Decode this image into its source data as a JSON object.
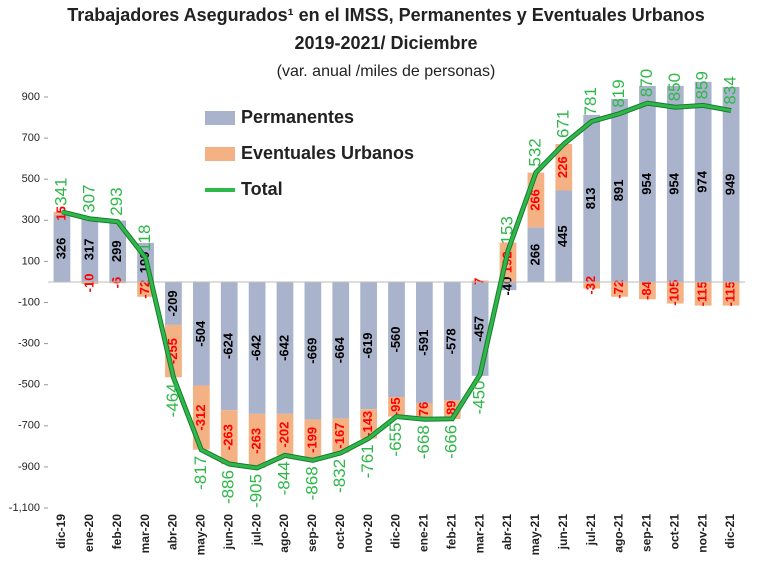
{
  "chart_data": {
    "type": "stacked_bar_line",
    "title": "Trabajadores Asegurados¹ en el IMSS, Permanentes y Eventuales Urbanos",
    "subtitle": "2019-2021/ Diciembre",
    "note": "(var. anual /miles de personas)",
    "categories": [
      "dic-19",
      "ene-20",
      "feb-20",
      "mar-20",
      "abr-20",
      "may-20",
      "jun-20",
      "jul-20",
      "ago-20",
      "sep-20",
      "oct-20",
      "nov-20",
      "dic-20",
      "ene-21",
      "feb-21",
      "mar-21",
      "abr-21",
      "may-21",
      "jun-21",
      "jul-21",
      "ago-21",
      "sep-21",
      "oct-21",
      "nov-21",
      "dic-21"
    ],
    "series": [
      {
        "name": "Permanentes",
        "color": "#a9b4cc",
        "kind": "bar",
        "label_color": "#000000",
        "values": [
          326,
          317,
          299,
          190,
          -209,
          -504,
          -624,
          -642,
          -642,
          -669,
          -664,
          -619,
          -560,
          -591,
          -578,
          -457,
          -40,
          266,
          445,
          813,
          891,
          954,
          954,
          974,
          949
        ]
      },
      {
        "name": "Eventuales Urbanos",
        "color": "#f4b183",
        "kind": "bar",
        "label_color": "#ff0000",
        "values": [
          15,
          -10,
          -6,
          -72,
          -255,
          -312,
          -263,
          -263,
          -202,
          -199,
          -167,
          -143,
          -95,
          -76,
          -89,
          7,
          192,
          266,
          226,
          -32,
          -72,
          -84,
          -105,
          -115,
          -115
        ]
      },
      {
        "name": "Total",
        "color": "#2fb84a",
        "kind": "line",
        "label_color": "#2fb84a",
        "values": [
          341,
          307,
          293,
          118,
          -464,
          -817,
          -886,
          -905,
          -844,
          -868,
          -832,
          -761,
          -655,
          -668,
          -666,
          -450,
          153,
          532,
          671,
          781,
          819,
          870,
          850,
          859,
          834
        ]
      }
    ],
    "ylim": [
      -1100,
      900
    ],
    "yticks": [
      900,
      700,
      500,
      300,
      100,
      -100,
      -300,
      -500,
      -700,
      -900,
      {
        "value": -1100,
        "label": "-1,100"
      }
    ]
  }
}
